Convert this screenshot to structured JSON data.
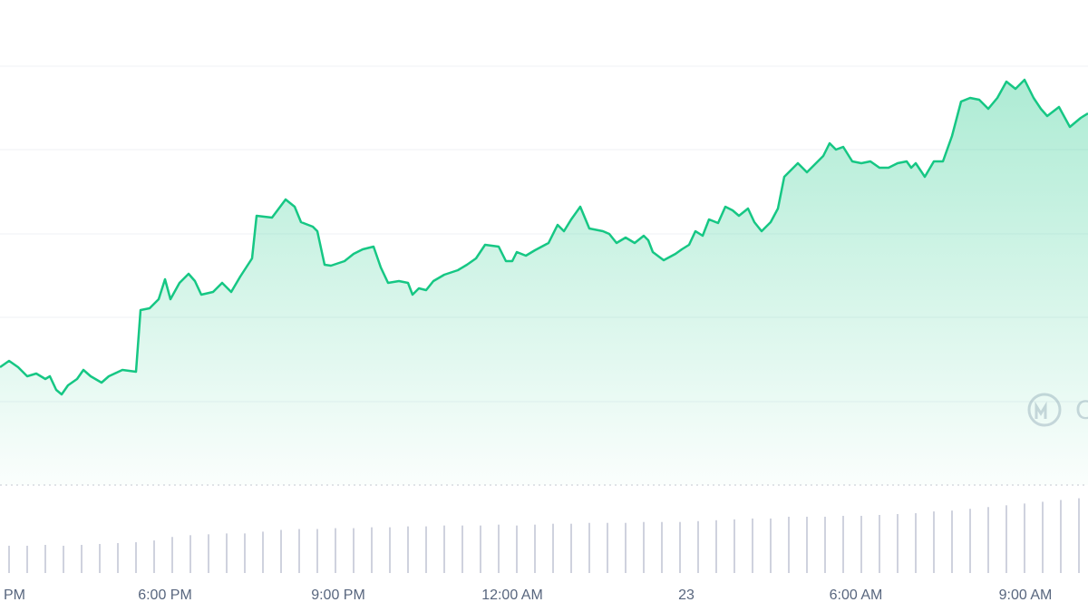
{
  "chart_data": [
    {
      "type": "area",
      "color": "#16c784",
      "watermark": "C",
      "x": [
        0,
        1,
        2,
        3,
        4,
        5,
        5.5,
        6.2,
        6.8,
        7.5,
        8.5,
        9.2,
        10,
        11.2,
        12,
        13.5,
        15,
        15.5,
        16.5,
        17.5,
        18.2,
        18.8,
        19.8,
        20.8,
        21.5,
        22.2,
        23.5,
        24.5,
        25.5,
        26.5,
        27.8,
        28.3,
        30,
        31.5,
        32.5,
        33.2,
        34.5,
        35,
        35.8,
        36.5,
        38,
        39,
        40,
        41.2,
        42,
        42.8,
        44,
        45,
        45.5,
        46.2,
        47,
        47.8,
        49,
        50.5,
        51.5,
        52.5,
        53.5,
        55,
        55.8,
        56.5,
        57,
        58,
        59,
        60.5,
        61.5,
        62.2,
        63,
        64,
        65,
        66.5,
        67.2,
        68,
        69,
        70,
        71,
        71.5,
        72,
        73.2,
        74.5,
        75.2,
        76,
        76.7,
        77.5,
        78.2,
        79.2,
        80,
        80.8,
        81.5,
        82.5,
        83.2,
        84,
        85,
        85.8,
        86.5,
        87.2,
        88,
        89,
        90,
        90.8,
        91.5,
        92.2,
        93,
        94,
        95,
        96,
        97,
        98,
        99,
        100,
        100.5,
        101,
        102,
        103,
        104,
        105,
        106,
        107,
        108,
        109,
        110,
        111,
        112,
        113,
        114,
        114.8,
        115.5,
        116.8,
        118,
        119.2,
        120
      ],
      "values": [
        13.0,
        13.7,
        13.0,
        12.0,
        12.3,
        11.7,
        12.0,
        10.5,
        10.0,
        11.0,
        11.7,
        12.7,
        12.0,
        11.3,
        12.0,
        12.7,
        12.5,
        19.3,
        19.5,
        20.5,
        22.7,
        20.5,
        22.3,
        23.3,
        22.5,
        21.0,
        21.3,
        22.3,
        21.3,
        23.0,
        25.0,
        29.7,
        29.5,
        31.5,
        30.7,
        29.0,
        28.5,
        28.0,
        24.3,
        24.2,
        24.7,
        25.5,
        26.0,
        26.3,
        24.0,
        22.3,
        22.5,
        22.3,
        21.0,
        21.7,
        21.5,
        22.5,
        23.2,
        23.7,
        24.3,
        25.0,
        26.5,
        26.3,
        24.7,
        24.7,
        25.7,
        25.3,
        25.9,
        26.7,
        28.7,
        28.0,
        29.3,
        30.7,
        28.3,
        28.0,
        27.7,
        26.7,
        27.3,
        26.7,
        27.5,
        27.0,
        25.7,
        24.8,
        25.5,
        26.0,
        26.5,
        28.0,
        27.5,
        29.3,
        28.9,
        30.7,
        30.3,
        29.7,
        30.5,
        29.0,
        28.0,
        29.0,
        30.5,
        34.0,
        34.7,
        35.5,
        34.5,
        35.5,
        36.3,
        37.7,
        37.0,
        37.3,
        35.7,
        35.5,
        35.7,
        35.0,
        35.0,
        35.5,
        35.7,
        35.0,
        35.5,
        34.0,
        35.7,
        35.7,
        38.5,
        42.3,
        42.7,
        42.5,
        41.5,
        42.7,
        44.5,
        43.7,
        44.7,
        42.7,
        41.5,
        40.7,
        41.7,
        39.5,
        40.5,
        41.0
      ],
      "xlim": [
        0,
        120
      ],
      "ylim": [
        0,
        53.5
      ],
      "xticks": [
        {
          "value": -0.8,
          "label": "PM"
        },
        {
          "value": 18.2,
          "label": "6:00 PM"
        },
        {
          "value": 37.3,
          "label": "9:00 PM"
        },
        {
          "value": 56.5,
          "label": "12:00 AM"
        },
        {
          "value": 75.7,
          "label": "23"
        },
        {
          "value": 94.4,
          "label": "6:00 AM"
        },
        {
          "value": 113.1,
          "label": "9:00 AM"
        }
      ]
    },
    {
      "type": "bar",
      "color": "#cfd2de",
      "x": [
        1,
        3,
        5,
        7,
        9,
        11,
        13,
        15,
        17,
        19,
        21,
        23,
        25,
        27,
        29,
        31,
        33,
        35,
        37,
        39,
        41,
        43,
        45,
        47,
        49,
        51,
        53,
        55,
        57,
        59,
        61,
        63,
        65,
        67,
        69,
        71,
        73,
        75,
        77,
        79,
        81,
        83,
        85,
        87,
        89,
        91,
        93,
        95,
        97,
        99,
        101,
        103,
        105,
        107,
        109,
        111,
        113,
        115,
        117,
        119
      ],
      "values": [
        3.1,
        3.1,
        3.2,
        3.1,
        3.2,
        3.3,
        3.4,
        3.5,
        3.7,
        4.1,
        4.3,
        4.4,
        4.5,
        4.5,
        4.7,
        4.9,
        5.0,
        5.0,
        5.1,
        5.1,
        5.2,
        5.2,
        5.3,
        5.3,
        5.4,
        5.4,
        5.4,
        5.5,
        5.4,
        5.5,
        5.6,
        5.6,
        5.7,
        5.7,
        5.7,
        5.8,
        5.8,
        5.8,
        5.9,
        6.0,
        6.1,
        6.2,
        6.2,
        6.4,
        6.4,
        6.4,
        6.5,
        6.5,
        6.6,
        6.7,
        6.8,
        7.0,
        7.1,
        7.3,
        7.5,
        7.7,
        7.9,
        8.1,
        8.3,
        8.5
      ],
      "xlim": [
        0,
        120
      ],
      "ylim": [
        0,
        10
      ]
    }
  ]
}
